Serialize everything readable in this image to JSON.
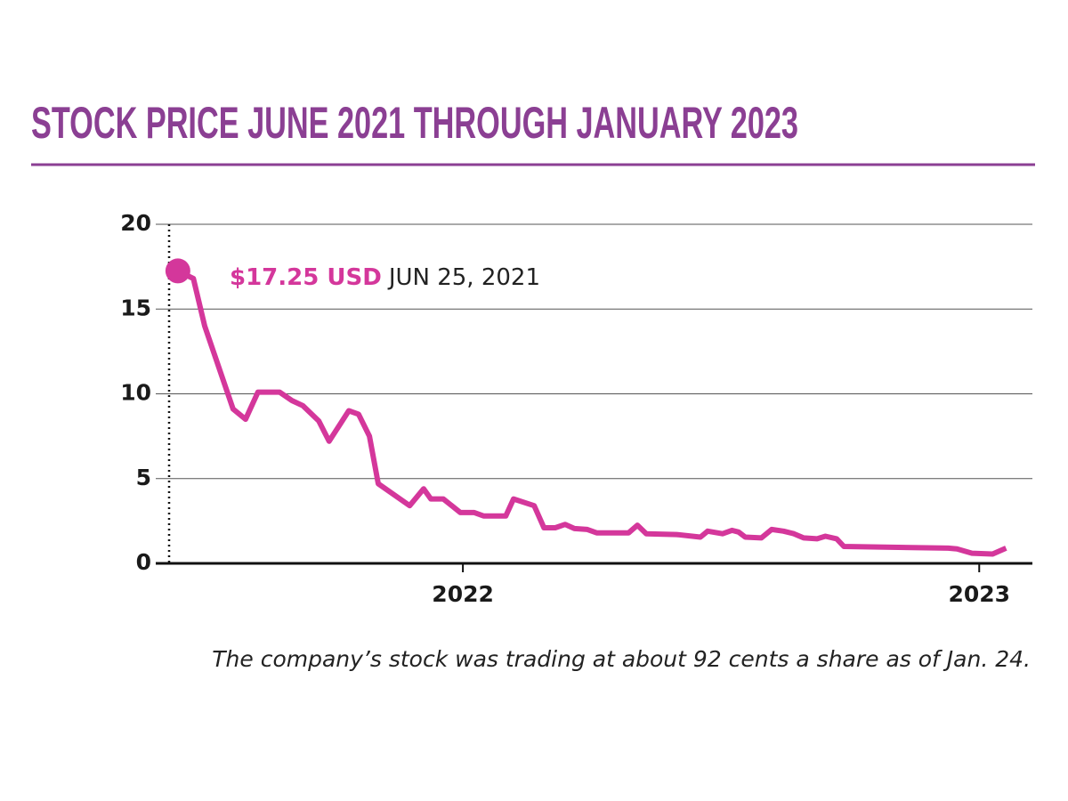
{
  "chart_data": {
    "type": "line",
    "title": "STOCK PRICE JUNE 2021 THROUGH JANUARY 2023",
    "annotation": {
      "label": "$17.25 USD",
      "date": "JUN 25, 2021"
    },
    "caption": "The company’s stock was trading at about 92 cents a share as of Jan. 24.",
    "x": [
      2021.448,
      2021.478,
      2021.5,
      2021.555,
      2021.579,
      2021.603,
      2021.645,
      2021.669,
      2021.69,
      2021.721,
      2021.741,
      2021.779,
      2021.798,
      2021.819,
      2021.836,
      2021.897,
      2021.924,
      2021.938,
      2021.962,
      2021.995,
      2022.022,
      2022.04,
      2022.083,
      2022.098,
      2022.138,
      2022.157,
      2022.179,
      2022.198,
      2022.216,
      2022.241,
      2022.259,
      2022.321,
      2022.338,
      2022.355,
      2022.414,
      2022.46,
      2022.474,
      2022.503,
      2022.521,
      2022.534,
      2022.547,
      2022.578,
      2022.598,
      2022.621,
      2022.641,
      2022.66,
      2022.686,
      2022.702,
      2022.724,
      2022.738,
      2022.94,
      2022.957,
      2022.986,
      2023.026,
      2023.052
    ],
    "values": [
      17.25,
      16.8,
      14,
      9.1,
      8.5,
      10.1,
      10.1,
      9.6,
      9.3,
      8.4,
      7.2,
      9.0,
      8.8,
      7.5,
      4.7,
      3.4,
      4.4,
      3.8,
      3.8,
      3.0,
      3.0,
      2.8,
      2.8,
      3.8,
      3.4,
      2.1,
      2.1,
      2.3,
      2.05,
      2.0,
      1.8,
      1.8,
      2.25,
      1.75,
      1.7,
      1.55,
      1.9,
      1.75,
      1.95,
      1.85,
      1.55,
      1.5,
      2.0,
      1.9,
      1.75,
      1.5,
      1.45,
      1.6,
      1.45,
      1.0,
      0.9,
      0.85,
      0.6,
      0.55,
      0.9
    ],
    "color": "#d4379b",
    "xlim": [
      2021.431,
      2023.103
    ],
    "xticks": [
      2022,
      2023
    ],
    "ylim": [
      0,
      20
    ],
    "yticks": [
      0,
      5,
      10,
      15,
      20
    ],
    "grid": true
  }
}
